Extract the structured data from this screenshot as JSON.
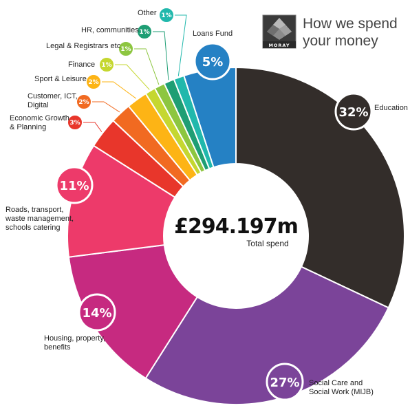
{
  "header": {
    "title_line1": "How we spend",
    "title_line2": "your money",
    "logo_text": "MORAY"
  },
  "center": {
    "value": "£294.197m",
    "label": "Total spend"
  },
  "colors": {
    "education": "#332d2a",
    "social_care": "#7b4499",
    "housing": "#c62a80",
    "roads": "#ed3a6a",
    "economic": "#e8362b",
    "customer": "#f16a21",
    "sport": "#fdb415",
    "finance": "#c5d730",
    "legal": "#8dc640",
    "hr": "#1e9e74",
    "other": "#21b8ac",
    "loans": "#2581c4"
  },
  "chart_data": {
    "type": "pie",
    "donut": true,
    "total": "£294.197m",
    "total_label": "Total spend",
    "slices": [
      {
        "label": "Education",
        "value": 32,
        "value_label": "32%"
      },
      {
        "label": "Social Care and Social Work (MIJB)",
        "value": 27,
        "value_label": "27%"
      },
      {
        "label": "Housing, property, benefits",
        "value": 14,
        "value_label": "14%"
      },
      {
        "label": "Roads, transport, waste management, schools catering",
        "value": 11,
        "value_label": "11%"
      },
      {
        "label": "Economic Growth & Planning",
        "value": 3,
        "value_label": "3%"
      },
      {
        "label": "Customer, ICT, Digital",
        "value": 2,
        "value_label": "2%"
      },
      {
        "label": "Sport & Leisure",
        "value": 2,
        "value_label": "2%"
      },
      {
        "label": "Finance",
        "value": 1,
        "value_label": "1%"
      },
      {
        "label": "Legal & Registrars etc",
        "value": 1,
        "value_label": "1%"
      },
      {
        "label": "HR, communities",
        "value": 1,
        "value_label": "1%"
      },
      {
        "label": "Other",
        "value": 1,
        "value_label": "1%"
      },
      {
        "label": "Loans Fund",
        "value": 5,
        "value_label": "5%"
      }
    ]
  }
}
